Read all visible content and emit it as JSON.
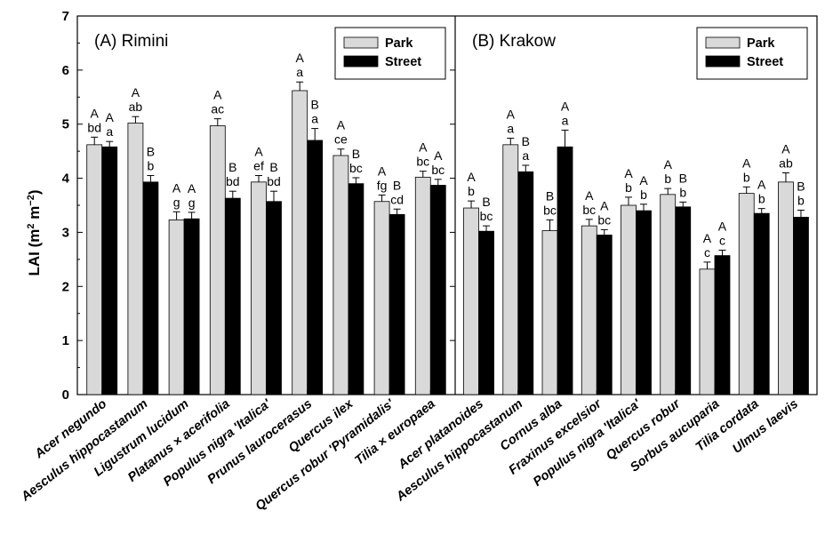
{
  "chart_data": {
    "type": "bar",
    "ylabel": "LAI (m",
    "ylabel_sup1": "2",
    "ylabel_mid": " m",
    "ylabel_sup2": "−2",
    "ylabel_end": ")",
    "ylim": [
      0,
      7
    ],
    "yticks": [
      "0",
      "1",
      "2",
      "3",
      "4",
      "5",
      "6",
      "7"
    ],
    "legend": {
      "placement": "top-right",
      "series_names": [
        "Park",
        "Street"
      ]
    },
    "series_colors": {
      "Park": "#d9d9d9",
      "Street": "#000000"
    },
    "panels": [
      {
        "title": "(A) Rimini",
        "categories": [
          "Acer negundo",
          "Aesculus hippocastanum",
          "Ligustrum lucidum",
          "Platanus × acerifolia",
          "Populus nigra 'Italica'",
          "Prunus laurocerasus",
          "Quercus ilex",
          "Quercus robur 'Pyramidalis'",
          "Tilia × europaea"
        ],
        "series": [
          {
            "name": "Park",
            "values": [
              4.62,
              5.02,
              3.23,
              4.97,
              3.93,
              5.62,
              4.42,
              3.57,
              4.02
            ],
            "errors": [
              0.14,
              0.12,
              0.15,
              0.13,
              0.12,
              0.16,
              0.12,
              0.12,
              0.11
            ]
          },
          {
            "name": "Street",
            "values": [
              4.58,
              3.93,
              3.25,
              3.63,
              3.57,
              4.7,
              3.9,
              3.33,
              3.87
            ],
            "errors": [
              0.1,
              0.12,
              0.12,
              0.13,
              0.19,
              0.22,
              0.11,
              0.1,
              0.11
            ]
          }
        ],
        "letters": [
          {
            "park": [
              "A",
              "bd"
            ],
            "street": [
              "A",
              "a"
            ]
          },
          {
            "park": [
              "A",
              "ab"
            ],
            "street": [
              "B",
              "b"
            ]
          },
          {
            "park": [
              "A",
              "g"
            ],
            "street": [
              "A",
              "g"
            ]
          },
          {
            "park": [
              "A",
              "ac"
            ],
            "street": [
              "B",
              "bd"
            ]
          },
          {
            "park": [
              "A",
              "ef"
            ],
            "street": [
              "B",
              "bd"
            ]
          },
          {
            "park": [
              "A",
              "a"
            ],
            "street": [
              "B",
              "a"
            ]
          },
          {
            "park": [
              "A",
              "ce"
            ],
            "street": [
              "B",
              "bc"
            ]
          },
          {
            "park": [
              "A",
              "fg"
            ],
            "street": [
              "B",
              "cd"
            ]
          },
          {
            "park": [
              "A",
              "bc"
            ],
            "street": [
              "A",
              "bc"
            ]
          }
        ]
      },
      {
        "title": "(B) Krakow",
        "categories": [
          "Acer platanoides",
          "Aesculus hippocastanum",
          "Cornus alba",
          "Fraxinus excelsior",
          "Populus nigra 'Italica'",
          "Quercus robur",
          "Sorbus aucuparia",
          "Tilia cordata",
          "Ulmus laevis"
        ],
        "series": [
          {
            "name": "Park",
            "values": [
              3.45,
              4.62,
              3.03,
              3.12,
              3.5,
              3.7,
              2.32,
              3.72,
              3.93
            ],
            "errors": [
              0.13,
              0.12,
              0.2,
              0.12,
              0.15,
              0.11,
              0.13,
              0.12,
              0.17
            ]
          },
          {
            "name": "Street",
            "values": [
              3.02,
              4.12,
              4.58,
              2.95,
              3.4,
              3.47,
              2.57,
              3.35,
              3.28
            ],
            "errors": [
              0.1,
              0.12,
              0.31,
              0.1,
              0.12,
              0.09,
              0.1,
              0.09,
              0.13
            ]
          }
        ],
        "letters": [
          {
            "park": [
              "A",
              "b"
            ],
            "street": [
              "B",
              "bc"
            ]
          },
          {
            "park": [
              "A",
              "a"
            ],
            "street": [
              "B",
              "a"
            ]
          },
          {
            "park": [
              "B",
              "bc"
            ],
            "street": [
              "A",
              "a"
            ]
          },
          {
            "park": [
              "A",
              "bc"
            ],
            "street": [
              "A",
              "bc"
            ]
          },
          {
            "park": [
              "A",
              "b"
            ],
            "street": [
              "A",
              "b"
            ]
          },
          {
            "park": [
              "A",
              "b"
            ],
            "street": [
              "B",
              "b"
            ]
          },
          {
            "park": [
              "A",
              "c"
            ],
            "street": [
              "A",
              "c"
            ]
          },
          {
            "park": [
              "A",
              "b"
            ],
            "street": [
              "A",
              "b"
            ]
          },
          {
            "park": [
              "A",
              "ab"
            ],
            "street": [
              "B",
              "b"
            ]
          }
        ]
      }
    ]
  }
}
